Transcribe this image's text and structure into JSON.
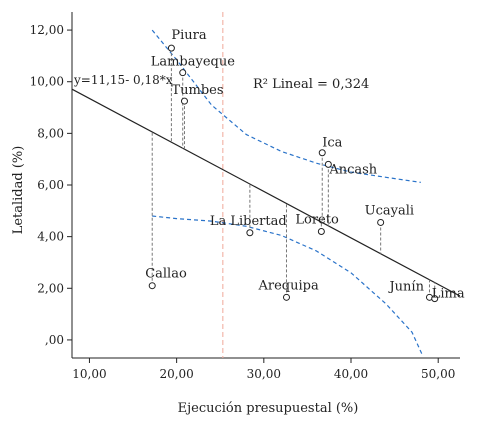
{
  "chart_data": {
    "type": "scatter",
    "xlabel": "Ejecución presupuestal (%)",
    "ylabel": "Letalidad (%)",
    "xlim": [
      8,
      52.5
    ],
    "ylim": [
      -0.7,
      12.7
    ],
    "x_ticks": [
      10,
      20,
      30,
      40,
      50
    ],
    "x_tick_labels": [
      "10,00",
      "20,00",
      "30,00",
      "40,00",
      "50,00"
    ],
    "y_ticks": [
      0,
      2,
      4,
      6,
      8,
      10,
      12
    ],
    "y_tick_labels": [
      ",00",
      "2,00",
      "4,00",
      "6,00",
      "8,00",
      "10,00",
      "12,00"
    ],
    "points": [
      {
        "label": "Piura",
        "x": 19.4,
        "y": 11.3
      },
      {
        "label": "Lambayeque",
        "x": 20.7,
        "y": 10.35
      },
      {
        "label": "Tumbes",
        "x": 20.9,
        "y": 9.25
      },
      {
        "label": "Ica",
        "x": 36.7,
        "y": 7.25
      },
      {
        "label": "Ancash",
        "x": 37.4,
        "y": 6.8
      },
      {
        "label": "Loreto",
        "x": 36.6,
        "y": 4.2
      },
      {
        "label": "La Libertad",
        "x": 28.4,
        "y": 4.15
      },
      {
        "label": "Ucayali",
        "x": 43.4,
        "y": 4.55
      },
      {
        "label": "Callao",
        "x": 17.2,
        "y": 2.1
      },
      {
        "label": "Arequipa",
        "x": 32.6,
        "y": 1.65
      },
      {
        "label": "Junín",
        "x": 49.0,
        "y": 1.65
      },
      {
        "label": "Lima",
        "x": 49.6,
        "y": 1.6
      }
    ],
    "regression": {
      "intercept": 11.15,
      "slope": -0.18
    },
    "mean_x": 25.3,
    "ci_upper": [
      [
        17.2,
        12.0
      ],
      [
        20,
        10.85
      ],
      [
        24,
        9.1
      ],
      [
        28,
        7.95
      ],
      [
        32,
        7.3
      ],
      [
        36,
        6.85
      ],
      [
        40,
        6.5
      ],
      [
        44,
        6.3
      ],
      [
        48,
        6.1
      ]
    ],
    "ci_lower": [
      [
        17.2,
        4.8
      ],
      [
        20,
        4.7
      ],
      [
        24,
        4.6
      ],
      [
        28,
        4.4
      ],
      [
        32,
        4.05
      ],
      [
        36,
        3.45
      ],
      [
        40,
        2.6
      ],
      [
        44,
        1.4
      ],
      [
        47,
        0.3
      ],
      [
        48.2,
        -0.6
      ]
    ],
    "equation_label": "y=11,15- 0,18*x",
    "r2_label": "R² Lineal = 0,324",
    "grid": false,
    "colors": {
      "point": "#222222",
      "fit_line": "#222222",
      "ci": "#2a73c9",
      "mean_line": "#f0a89a",
      "residual": "#777777"
    }
  }
}
